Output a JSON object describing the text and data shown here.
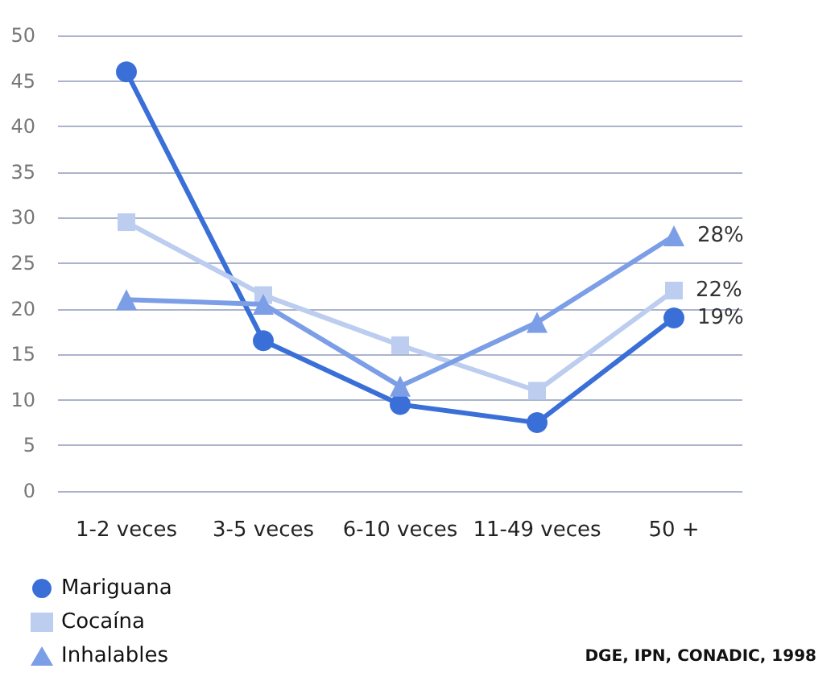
{
  "chart_data": {
    "type": "line",
    "categories": [
      "1-2 veces",
      "3-5 veces",
      "6-10 veces",
      "11-49 veces",
      "50 +"
    ],
    "series": [
      {
        "name": "Mariguana",
        "color": "#3a6fd8",
        "marker": "circle",
        "values": [
          46,
          16.5,
          9.5,
          7.5,
          19
        ],
        "value_labels": [
          null,
          null,
          null,
          null,
          "19%"
        ]
      },
      {
        "name": "Cocaína",
        "color": "#bccdf0",
        "marker": "square",
        "values": [
          29.5,
          21.5,
          16,
          11,
          22
        ],
        "value_labels": [
          null,
          null,
          null,
          null,
          "22%"
        ]
      },
      {
        "name": "Inhalables",
        "color": "#7b9ee6",
        "marker": "triangle",
        "values": [
          21,
          20.5,
          11.5,
          18.5,
          28
        ],
        "value_labels": [
          null,
          null,
          null,
          null,
          "28%"
        ]
      }
    ],
    "ylim": [
      0,
      50
    ],
    "yticks": [
      0,
      5,
      10,
      15,
      20,
      25,
      30,
      35,
      40,
      45,
      50
    ],
    "grid": "y",
    "legend": "bottom left",
    "annotations": [
      "DGE, IPN, CONADIC, 1998"
    ]
  }
}
